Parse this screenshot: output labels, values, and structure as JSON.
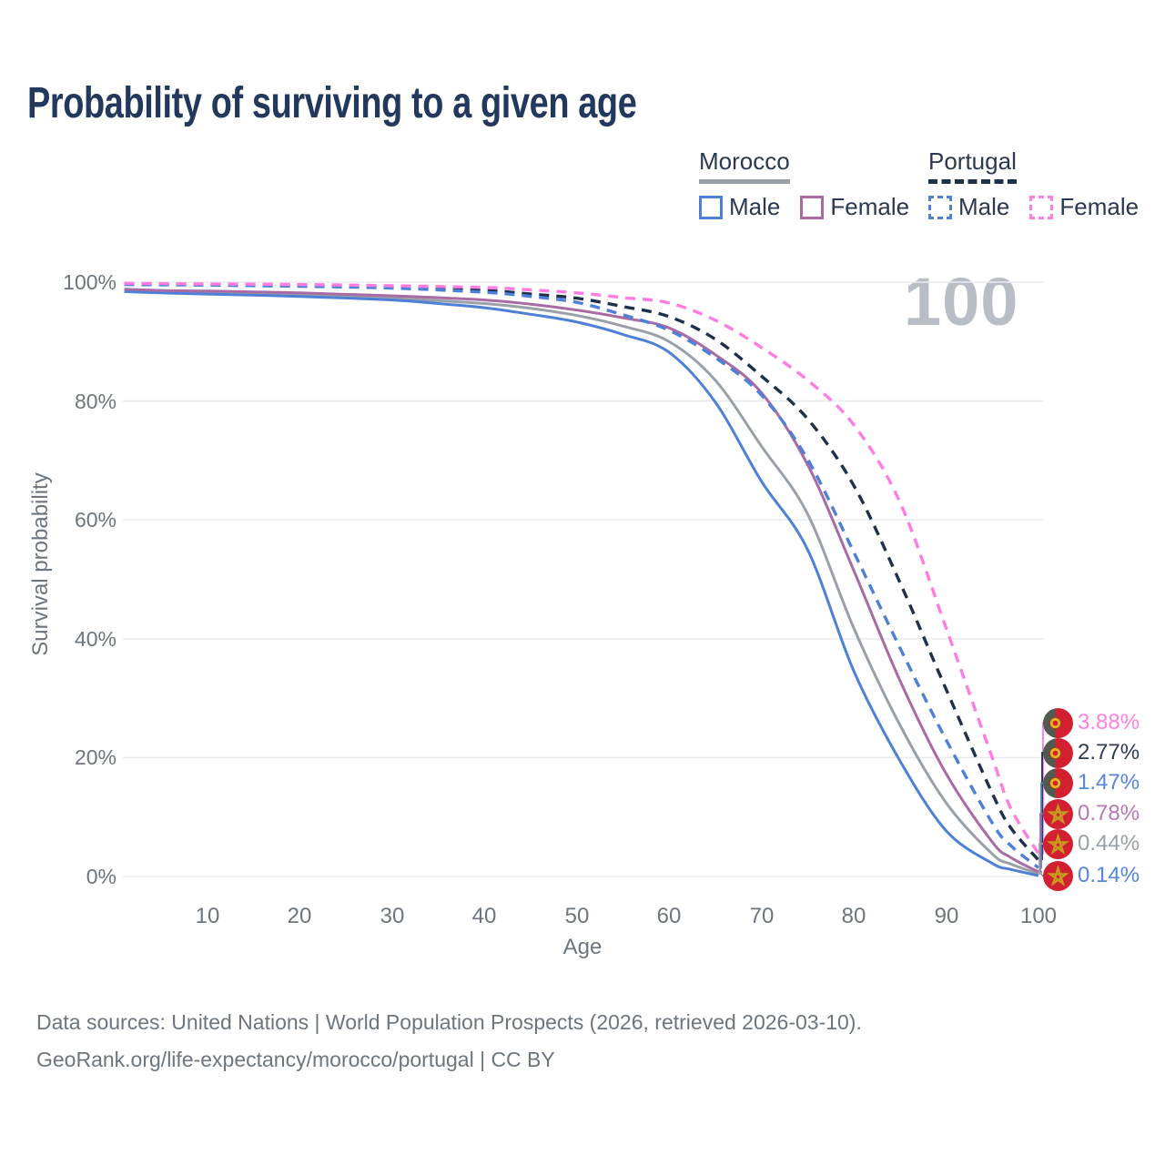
{
  "title": "Probability of surviving to a given age",
  "watermark": "100",
  "legend": {
    "morocco": {
      "title": "Morocco",
      "line_style": "solid",
      "underline_color": "#9aa0a7",
      "male_label": "Male",
      "female_label": "Female"
    },
    "portugal": {
      "title": "Portugal",
      "line_style": "dashed",
      "underline_color": "#20304b",
      "male_label": "Male",
      "female_label": "Female"
    }
  },
  "axes": {
    "y": {
      "label": "Survival probability",
      "ticks": [
        "100%",
        "80%",
        "60%",
        "40%",
        "20%",
        "0%"
      ]
    },
    "x": {
      "label": "Age",
      "ticks": [
        "10",
        "20",
        "30",
        "40",
        "50",
        "60",
        "70",
        "80",
        "90",
        "100"
      ]
    }
  },
  "chart_data": {
    "type": "line",
    "title": "Probability of surviving to a given age",
    "xlabel": "Age",
    "ylabel": "Survival probability",
    "xlim": [
      0,
      100
    ],
    "ylim_pct": [
      0,
      100
    ],
    "x_ticks": [
      10,
      20,
      30,
      40,
      50,
      60,
      70,
      80,
      90,
      100
    ],
    "y_ticks_pct": [
      100,
      80,
      60,
      40,
      20,
      0
    ],
    "grid": "horizontal",
    "legend_position": "top-right",
    "series": [
      {
        "id": "ma_total",
        "name": "Morocco Both sexes",
        "country": "Morocco",
        "sex": "total",
        "style": "solid",
        "color": "#9aa0a7",
        "final_value_pct": 0.44,
        "points": [
          [
            1,
            98.6
          ],
          [
            5,
            98.4
          ],
          [
            10,
            98.2
          ],
          [
            20,
            97.9
          ],
          [
            30,
            97.3
          ],
          [
            40,
            96.4
          ],
          [
            45,
            95.6
          ],
          [
            50,
            94.4
          ],
          [
            55,
            92.6
          ],
          [
            60,
            90.0
          ],
          [
            65,
            83.5
          ],
          [
            70,
            72.4
          ],
          [
            75,
            61.0
          ],
          [
            80,
            41.8
          ],
          [
            85,
            25.5
          ],
          [
            90,
            12.4
          ],
          [
            95,
            3.8
          ],
          [
            97,
            2.1
          ],
          [
            100,
            0.44
          ]
        ]
      },
      {
        "id": "ma_male",
        "name": "Morocco Male",
        "country": "Morocco",
        "sex": "male",
        "style": "solid",
        "color": "#4d80d6",
        "final_value_pct": 0.14,
        "points": [
          [
            1,
            98.4
          ],
          [
            5,
            98.2
          ],
          [
            10,
            98.0
          ],
          [
            20,
            97.6
          ],
          [
            30,
            97.0
          ],
          [
            35,
            96.4
          ],
          [
            40,
            95.7
          ],
          [
            45,
            94.6
          ],
          [
            50,
            93.3
          ],
          [
            55,
            91.2
          ],
          [
            60,
            88.2
          ],
          [
            65,
            79.8
          ],
          [
            70,
            66.5
          ],
          [
            75,
            55.0
          ],
          [
            80,
            34.6
          ],
          [
            85,
            19.5
          ],
          [
            90,
            7.7
          ],
          [
            95,
            2.2
          ],
          [
            97,
            1.2
          ],
          [
            100,
            0.14
          ]
        ]
      },
      {
        "id": "ma_female",
        "name": "Morocco Female",
        "country": "Morocco",
        "sex": "female",
        "style": "solid",
        "color": "#a86ba4",
        "final_value_pct": 0.78,
        "points": [
          [
            1,
            98.8
          ],
          [
            5,
            98.6
          ],
          [
            10,
            98.5
          ],
          [
            20,
            98.2
          ],
          [
            30,
            97.7
          ],
          [
            40,
            97.0
          ],
          [
            45,
            96.3
          ],
          [
            50,
            95.3
          ],
          [
            55,
            94.0
          ],
          [
            60,
            92.3
          ],
          [
            65,
            87.8
          ],
          [
            70,
            81.4
          ],
          [
            75,
            69.3
          ],
          [
            80,
            51.5
          ],
          [
            85,
            33.0
          ],
          [
            90,
            17.3
          ],
          [
            95,
            5.8
          ],
          [
            97,
            3.2
          ],
          [
            100,
            0.78
          ]
        ]
      },
      {
        "id": "pt_total",
        "name": "Portugal Both sexes",
        "country": "Portugal",
        "sex": "total",
        "style": "dashed",
        "color": "#20304b",
        "final_value_pct": 2.77,
        "points": [
          [
            1,
            99.7
          ],
          [
            5,
            99.65
          ],
          [
            10,
            99.6
          ],
          [
            20,
            99.5
          ],
          [
            30,
            99.2
          ],
          [
            40,
            98.6
          ],
          [
            45,
            98.0
          ],
          [
            50,
            97.3
          ],
          [
            55,
            95.9
          ],
          [
            60,
            94.2
          ],
          [
            65,
            90.4
          ],
          [
            70,
            84.2
          ],
          [
            75,
            77.0
          ],
          [
            80,
            65.8
          ],
          [
            85,
            49.5
          ],
          [
            90,
            31.5
          ],
          [
            95,
            14.0
          ],
          [
            97,
            8.2
          ],
          [
            100,
            2.77
          ]
        ]
      },
      {
        "id": "pt_male",
        "name": "Portugal Male",
        "country": "Portugal",
        "sex": "male",
        "style": "dashed",
        "color": "#4d80d6",
        "final_value_pct": 1.47,
        "points": [
          [
            1,
            99.6
          ],
          [
            5,
            99.55
          ],
          [
            10,
            99.5
          ],
          [
            20,
            99.3
          ],
          [
            30,
            99.0
          ],
          [
            40,
            98.3
          ],
          [
            45,
            97.6
          ],
          [
            50,
            96.6
          ],
          [
            55,
            94.5
          ],
          [
            60,
            91.9
          ],
          [
            65,
            87.3
          ],
          [
            70,
            81.0
          ],
          [
            75,
            70.2
          ],
          [
            80,
            54.6
          ],
          [
            85,
            38.5
          ],
          [
            90,
            23.0
          ],
          [
            95,
            9.0
          ],
          [
            97,
            5.2
          ],
          [
            100,
            1.47
          ]
        ]
      },
      {
        "id": "pt_female",
        "name": "Portugal Female",
        "country": "Portugal",
        "sex": "female",
        "style": "dashed",
        "color": "#ff7ce0",
        "final_value_pct": 3.88,
        "points": [
          [
            1,
            99.8
          ],
          [
            5,
            99.75
          ],
          [
            10,
            99.7
          ],
          [
            20,
            99.6
          ],
          [
            30,
            99.4
          ],
          [
            40,
            99.1
          ],
          [
            45,
            98.7
          ],
          [
            50,
            98.2
          ],
          [
            55,
            97.4
          ],
          [
            60,
            96.5
          ],
          [
            65,
            93.6
          ],
          [
            70,
            89.0
          ],
          [
            75,
            83.5
          ],
          [
            80,
            76.0
          ],
          [
            85,
            63.0
          ],
          [
            90,
            41.8
          ],
          [
            95,
            20.0
          ],
          [
            97,
            11.5
          ],
          [
            100,
            3.88
          ]
        ]
      }
    ]
  },
  "value_labels": [
    {
      "text": "3.88%",
      "series": "pt_female",
      "country": "Portugal",
      "color": "#ff80e1"
    },
    {
      "text": "2.77%",
      "series": "pt_total",
      "country": "Portugal",
      "color": "#2c3a52"
    },
    {
      "text": "1.47%",
      "series": "pt_male",
      "country": "Portugal",
      "color": "#5586d8"
    },
    {
      "text": "0.78%",
      "series": "ma_female",
      "country": "Morocco",
      "color": "#b879b2"
    },
    {
      "text": "0.44%",
      "series": "ma_total",
      "country": "Morocco",
      "color": "#9aa0a7"
    },
    {
      "text": "0.14%",
      "series": "ma_male",
      "country": "Morocco",
      "color": "#5586d8"
    }
  ],
  "footer": {
    "line1": "Data sources: United Nations | World Population Prospects (2026, retrieved 2026-03-10).",
    "line2": "GeoRank.org/life-expectancy/morocco/portugal | CC BY"
  }
}
